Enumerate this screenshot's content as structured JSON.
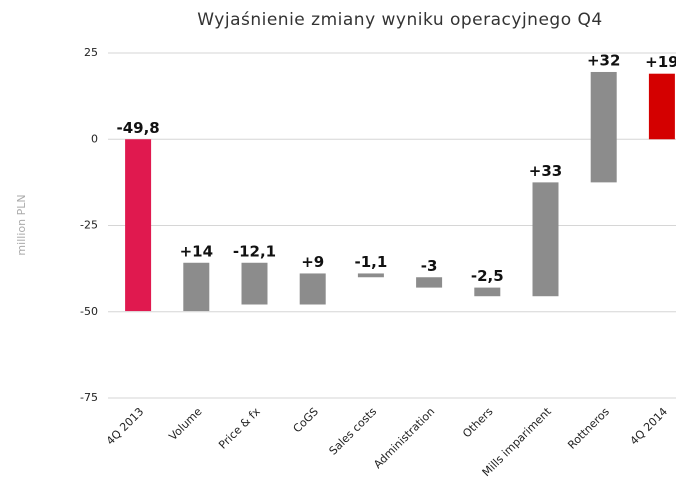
{
  "chart_data": {
    "type": "waterfall",
    "title": "Wyjaśnienie zmiany wyniku operacyjnego Q4",
    "y_label": "million PLN",
    "categories": [
      "4Q 2013",
      "Volume",
      "Price & fx",
      "CoGS",
      "Sales costs",
      "Administration",
      "Others",
      "Mills impariment",
      "Rottneros",
      "4Q 2014"
    ],
    "values": [
      -49.8,
      14,
      -12.1,
      9,
      -1.1,
      -3,
      -2.5,
      33,
      32,
      19
    ],
    "value_labels": [
      "-49,8",
      "+14",
      "-12,1",
      "+9",
      "-1,1",
      "-3",
      "-2,5",
      "+33",
      "+32",
      "+19"
    ],
    "measure": [
      "absolute",
      "relative",
      "relative",
      "relative",
      "relative",
      "relative",
      "relative",
      "relative",
      "relative",
      "total"
    ],
    "colors": [
      "#e0194f",
      "#8c8c8c",
      "#8c8c8c",
      "#8c8c8c",
      "#8c8c8c",
      "#8c8c8c",
      "#8c8c8c",
      "#8c8c8c",
      "#8c8c8c",
      "#d40000"
    ],
    "ylim": [
      -75,
      25
    ],
    "yticks": [
      25,
      0,
      -25,
      -50,
      -75
    ],
    "grid": true
  }
}
